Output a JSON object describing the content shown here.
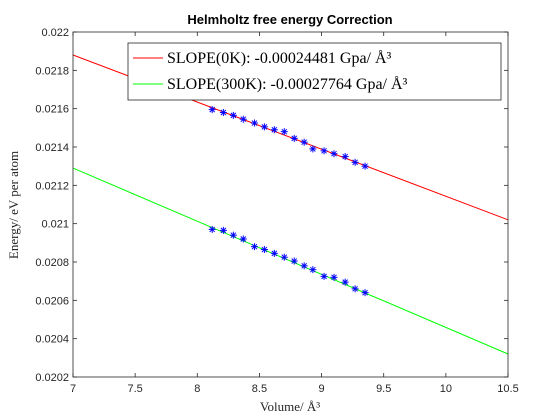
{
  "chart_data": {
    "type": "scatter",
    "title": "Helmholtz free energy Correction",
    "xlabel": "Volume/ Å³",
    "ylabel": "Energy/ eV per atom",
    "xlim": [
      7,
      10.5
    ],
    "ylim": [
      0.0202,
      0.022
    ],
    "x_ticks": [
      "7",
      "7.5",
      "8",
      "8.5",
      "9",
      "9.5",
      "10",
      "10.5"
    ],
    "y_ticks": [
      "0.0202",
      "0.0204",
      "0.0206",
      "0.0208",
      "0.021",
      "0.0212",
      "0.0214",
      "0.0216",
      "0.0218",
      "0.022"
    ],
    "x_tick_values": [
      7,
      7.5,
      8,
      8.5,
      9,
      9.5,
      10,
      10.5
    ],
    "y_tick_values": [
      0.0202,
      0.0204,
      0.0206,
      0.0208,
      0.021,
      0.0212,
      0.0214,
      0.0216,
      0.0218,
      0.022
    ],
    "grid": false,
    "legend_position": "top-right",
    "series": [
      {
        "name": "SLOPE(0K): -0.00024481 Gpa/ Å³",
        "line_color": "#ff0000",
        "marker_color": "#0000ff",
        "fit_line": [
          [
            7,
            0.02188
          ],
          [
            10.5,
            0.02102
          ]
        ],
        "x": [
          8.12,
          8.21,
          8.29,
          8.37,
          8.46,
          8.54,
          8.62,
          8.7,
          8.78,
          8.86,
          8.93,
          9.02,
          9.1,
          9.19,
          9.27,
          9.35
        ],
        "y": [
          0.021595,
          0.02158,
          0.021565,
          0.021545,
          0.021525,
          0.021505,
          0.02149,
          0.02148,
          0.021445,
          0.021425,
          0.02139,
          0.02138,
          0.021365,
          0.02135,
          0.02132,
          0.0213
        ]
      },
      {
        "name": "SLOPE(300K): -0.00027764 Gpa/ Å³",
        "line_color": "#00ff00",
        "marker_color": "#0000ff",
        "fit_line": [
          [
            7,
            0.02129
          ],
          [
            10.5,
            0.02032
          ]
        ],
        "x": [
          8.12,
          8.21,
          8.29,
          8.37,
          8.46,
          8.54,
          8.62,
          8.7,
          8.78,
          8.86,
          8.93,
          9.02,
          9.1,
          9.19,
          9.27,
          9.35
        ],
        "y": [
          0.02097,
          0.020965,
          0.02094,
          0.02092,
          0.02088,
          0.020865,
          0.020845,
          0.020825,
          0.020805,
          0.02078,
          0.02076,
          0.020725,
          0.02072,
          0.020695,
          0.02066,
          0.02064
        ]
      }
    ]
  }
}
